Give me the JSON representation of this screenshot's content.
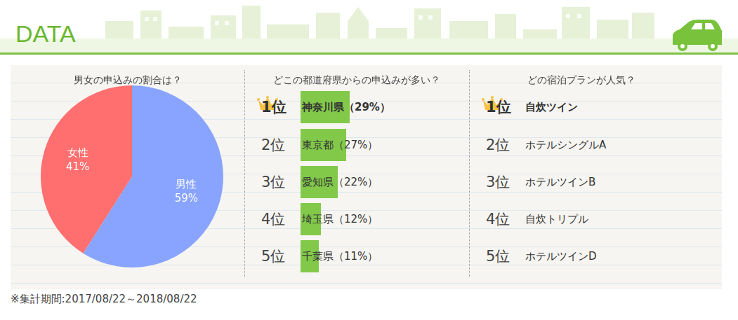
{
  "header": {
    "title": "DATA"
  },
  "chart_data": {
    "type": "pie",
    "title": "男女の申込みの割合は？",
    "categories": [
      "男性",
      "女性"
    ],
    "values": [
      59,
      41
    ],
    "value_labels": [
      "59%",
      "41%"
    ],
    "colors": [
      "#88a4ff",
      "#ff6f6f"
    ],
    "data_labels": true
  },
  "prefecture_ranking": {
    "title": "どこの都道府県からの申込みが多い？",
    "rows": [
      {
        "rank": "1位",
        "name": "神奈川県",
        "value": 29,
        "value_label": "（29%）"
      },
      {
        "rank": "2位",
        "name": "東京都",
        "value": 27,
        "value_label": "（27%）"
      },
      {
        "rank": "3位",
        "name": "愛知県",
        "value": 22,
        "value_label": "（22%）"
      },
      {
        "rank": "4位",
        "name": "埼玉県",
        "value": 12,
        "value_label": "（12%）"
      },
      {
        "rank": "5位",
        "name": "千葉県",
        "value": 11,
        "value_label": "（11%）"
      }
    ],
    "color": "#82c94a"
  },
  "plan_ranking": {
    "title": "どの宿泊プランが人気？",
    "rows": [
      {
        "rank": "1位",
        "name": "自炊ツイン"
      },
      {
        "rank": "2位",
        "name": "ホテルシングルA"
      },
      {
        "rank": "3位",
        "name": "ホテルツインB"
      },
      {
        "rank": "4位",
        "name": "自炊トリプル"
      },
      {
        "rank": "5位",
        "name": "ホテルツインD"
      }
    ]
  },
  "footnote": "※集計期間:2017/08/22～2018/08/22"
}
